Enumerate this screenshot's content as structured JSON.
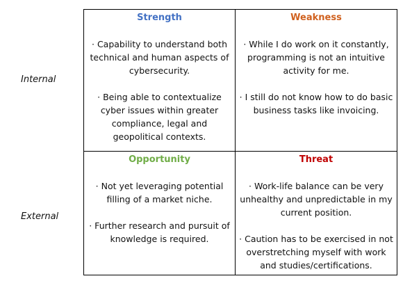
{
  "rows": {
    "internal": "Internal",
    "external": "External"
  },
  "strength": {
    "heading": "Strength",
    "color": "#4472c4",
    "points": [
      "· Capability to understand both technical and human aspects of cybersecurity.",
      "· Being able to contextualize cyber issues within greater compliance, legal and geopolitical contexts."
    ]
  },
  "weakness": {
    "heading": "Weakness",
    "color": "#d0611f",
    "points": [
      "· While I do work on it constantly, programming is not an intuitive activity for me.",
      "· I still do not know how to do basic business tasks like invoicing."
    ]
  },
  "opportunity": {
    "heading": "Opportunity",
    "color": "#70ad47",
    "points": [
      "· Not yet leveraging potential filling of a market niche.",
      "· Further research and pursuit of knowledge is required."
    ]
  },
  "threat": {
    "heading": "Threat",
    "color": "#c00000",
    "points": [
      "· Work-life balance can be very unhealthy and unpredictable in my current position.",
      "· Caution has to be exercised in not overstretching myself with work and studies/certifications."
    ]
  }
}
